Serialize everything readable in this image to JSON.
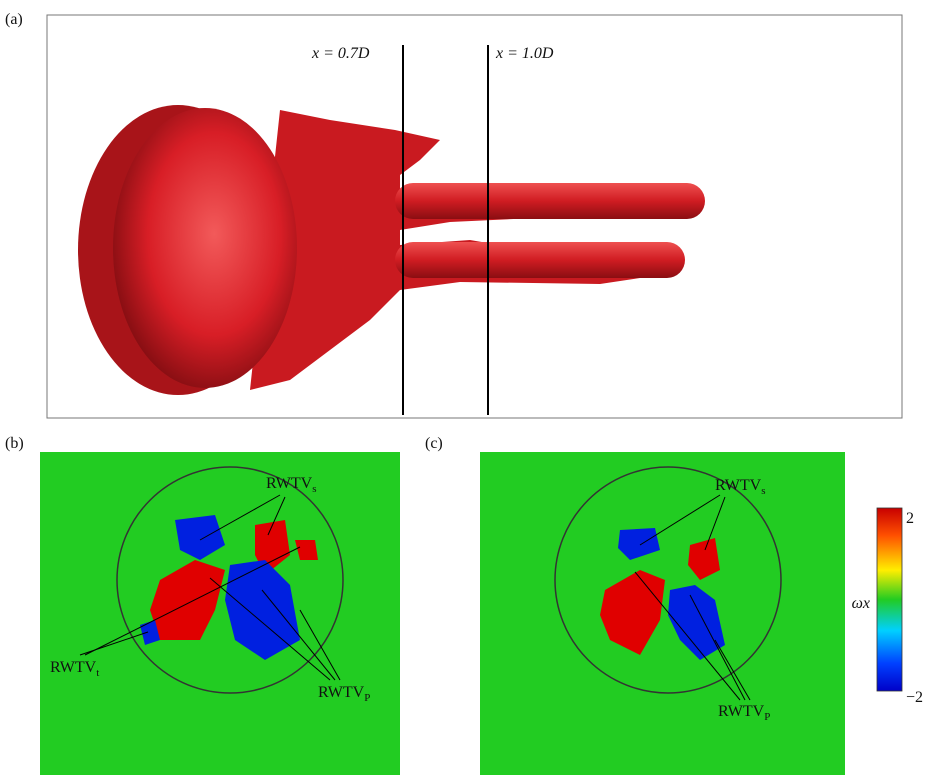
{
  "panels": [
    {
      "label": "(a)",
      "lines": [
        "x = 0.7D",
        "x = 1.0D"
      ]
    },
    {
      "label": "(b)",
      "annotations": [
        {
          "text": "RWTV",
          "sub": "s"
        },
        {
          "text": "RWTV",
          "sub": "t"
        },
        {
          "text": "RWTV",
          "sub": "P"
        }
      ]
    },
    {
      "label": "(c)",
      "annotations": [
        {
          "text": "RWTV",
          "sub": "s"
        },
        {
          "text": "RWTV",
          "sub": "P"
        }
      ]
    }
  ],
  "colorbar": {
    "label": "ωx",
    "max": "2",
    "min": "−2"
  }
}
